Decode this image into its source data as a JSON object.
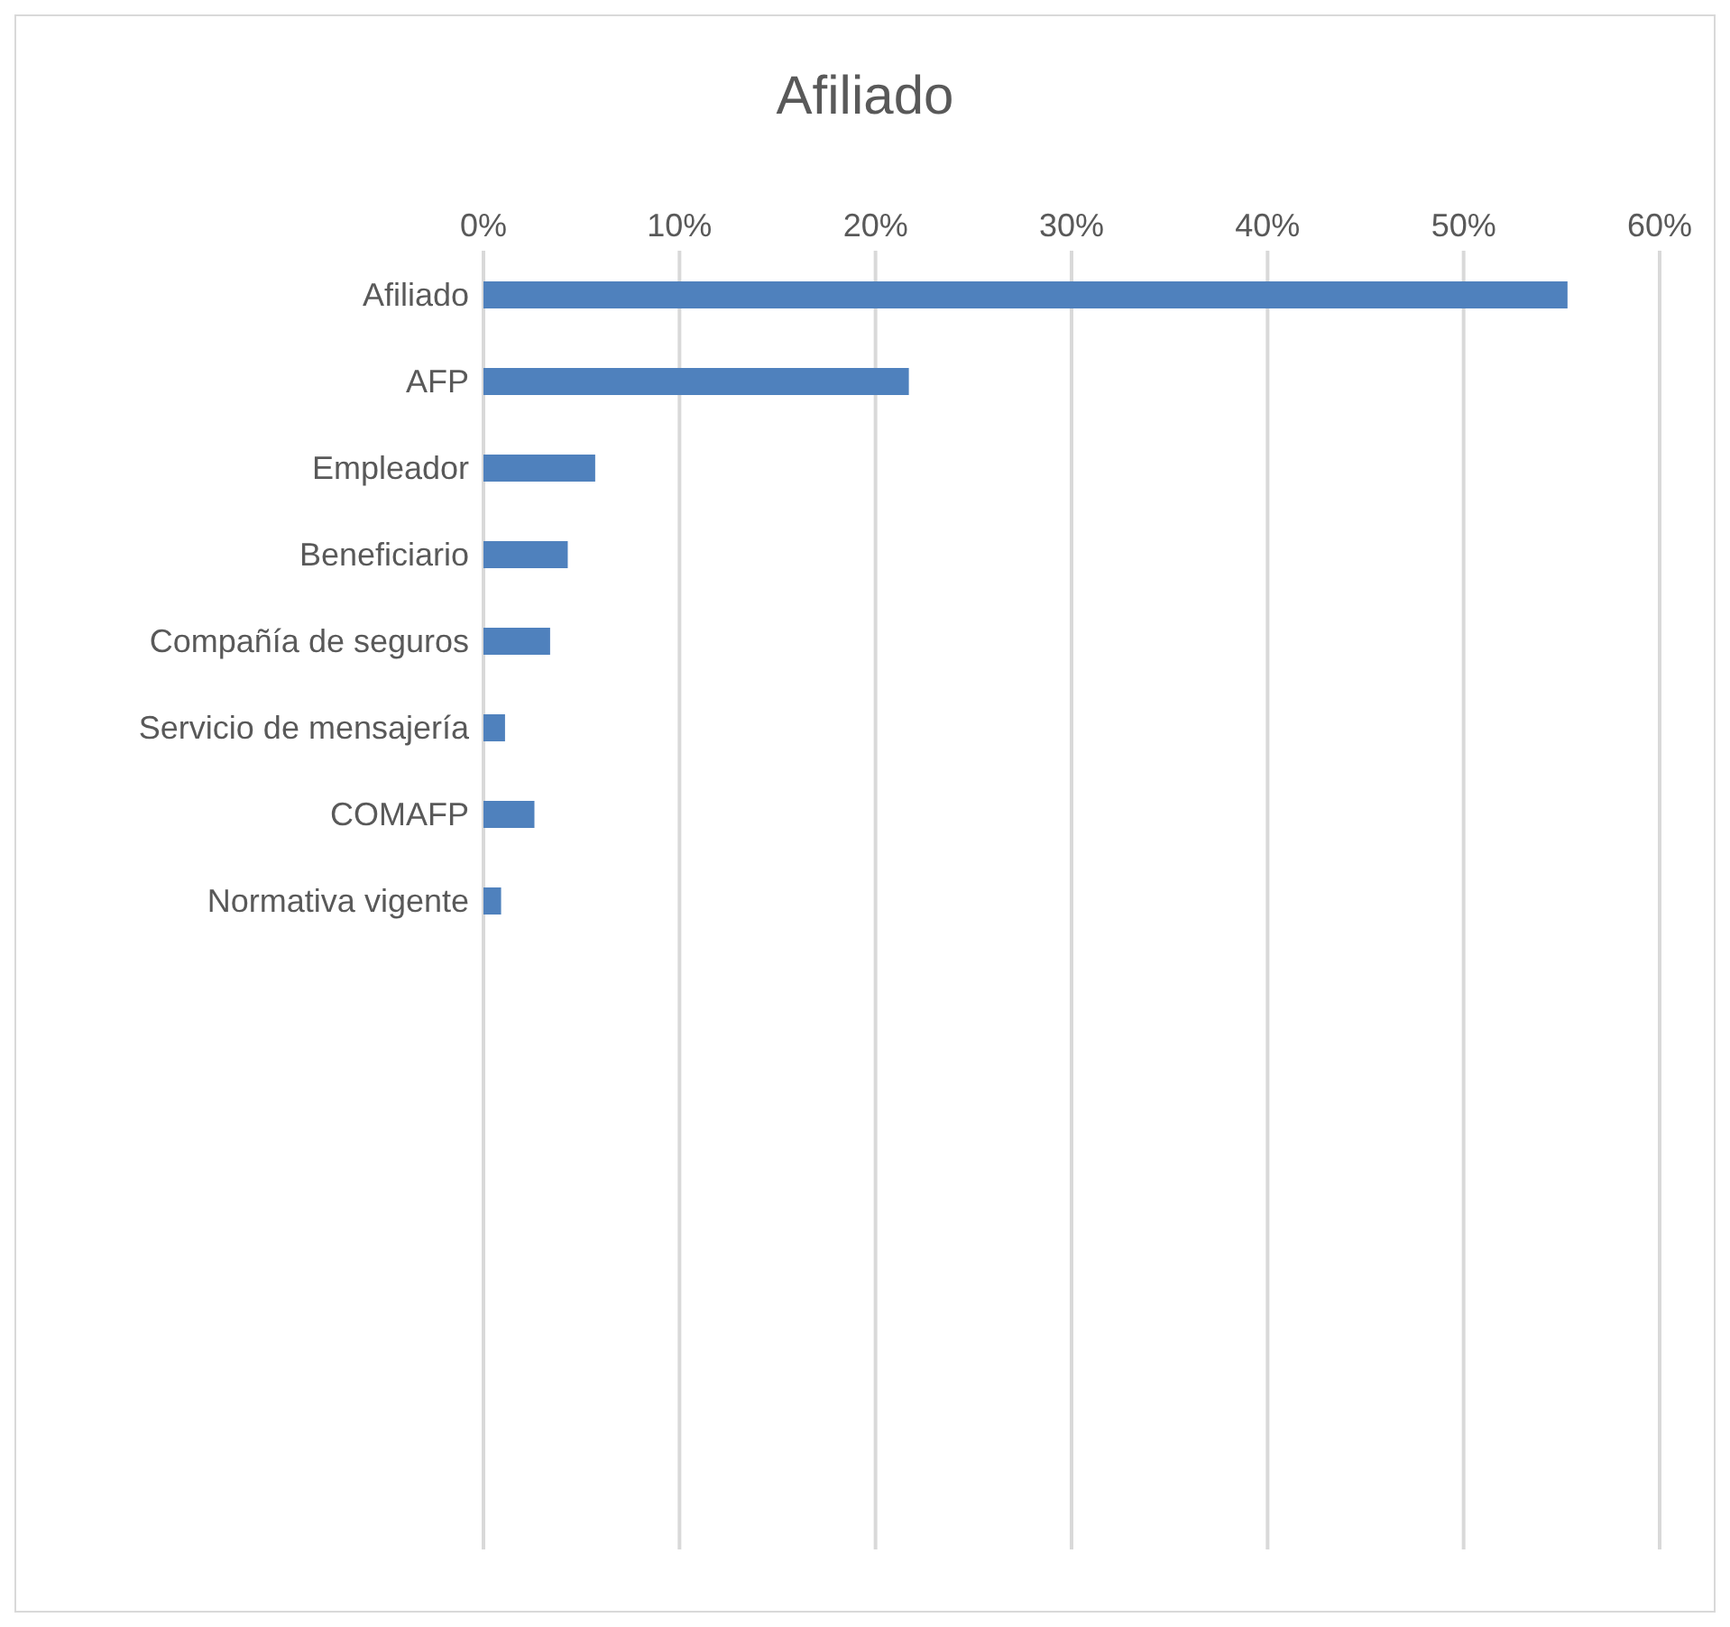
{
  "chart_data": {
    "type": "bar",
    "orientation": "horizontal",
    "title": "Afiliado",
    "categories": [
      "Afiliado",
      "AFP",
      "Empleador",
      "Beneficiario",
      "Compañía de seguros",
      "Servicio de mensajería",
      "COMAFP",
      "Normativa vigente",
      null,
      null,
      null,
      null,
      null,
      null,
      null
    ],
    "values": [
      55.3,
      21.7,
      5.7,
      4.3,
      3.4,
      1.1,
      2.6,
      0.9,
      null,
      null,
      null,
      null,
      null,
      null,
      null
    ],
    "color": "#4f81bd",
    "xlim": [
      0,
      60
    ],
    "xticks": [
      {
        "value": 0,
        "label": "0%"
      },
      {
        "value": 10,
        "label": "10%"
      },
      {
        "value": 20,
        "label": "20%"
      },
      {
        "value": 30,
        "label": "30%"
      },
      {
        "value": 40,
        "label": "40%"
      },
      {
        "value": 50,
        "label": "50%"
      },
      {
        "value": 60,
        "label": "60%"
      }
    ],
    "grid": "x",
    "legend": false
  }
}
